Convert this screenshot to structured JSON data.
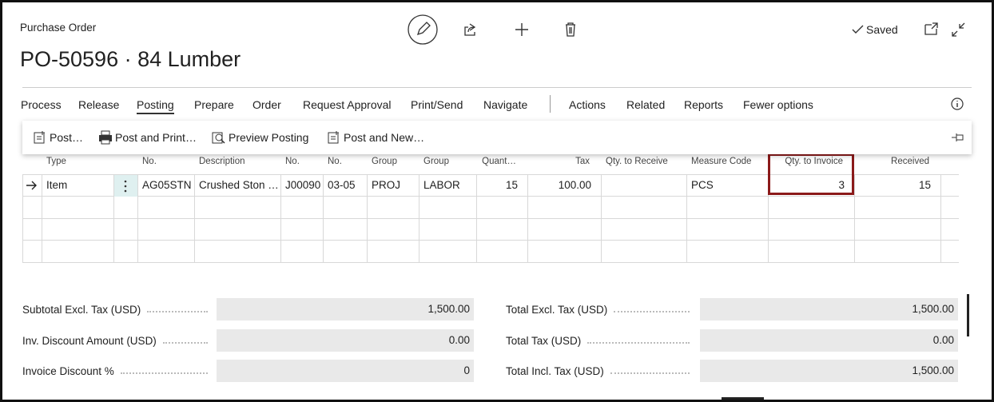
{
  "header": {
    "breadcrumb": "Purchase Order",
    "title": "PO-50596 · 84 Lumber",
    "status": "Saved"
  },
  "menu": [
    "Process",
    "Release",
    "Posting",
    "Prepare",
    "Order",
    "Request Approval",
    "Print/Send",
    "Navigate",
    "Actions",
    "Related",
    "Reports",
    "Fewer options"
  ],
  "submenu": [
    "Post…",
    "Post and Print…",
    "Preview Posting",
    "Post and New…"
  ],
  "table": {
    "columns": [
      "Type",
      "No.",
      "Description",
      "No.",
      "No.",
      "Group",
      "Group",
      "Quant…",
      "Tax",
      "Qty. to Receive",
      "Measure Code",
      "Qty. to Invoice",
      "Received"
    ],
    "rows": [
      [
        "Item",
        "AG05STN",
        "Crushed Ston …",
        "J00090",
        "03-05",
        "PROJ",
        "LABOR",
        "15",
        "100.00",
        null,
        "PCS",
        "3",
        "15"
      ]
    ]
  },
  "totals": {
    "left": [
      {
        "label": "Subtotal Excl. Tax (USD)",
        "value": "1,500.00"
      },
      {
        "label": "Inv. Discount Amount (USD)",
        "value": "0.00"
      },
      {
        "label": "Invoice Discount %",
        "value": "0"
      }
    ],
    "right": [
      {
        "label": "Total Excl. Tax (USD)",
        "value": "1,500.00"
      },
      {
        "label": "Total Tax (USD)",
        "value": "0.00"
      },
      {
        "label": "Total Incl. Tax (USD)",
        "value": "1,500.00"
      }
    ]
  }
}
